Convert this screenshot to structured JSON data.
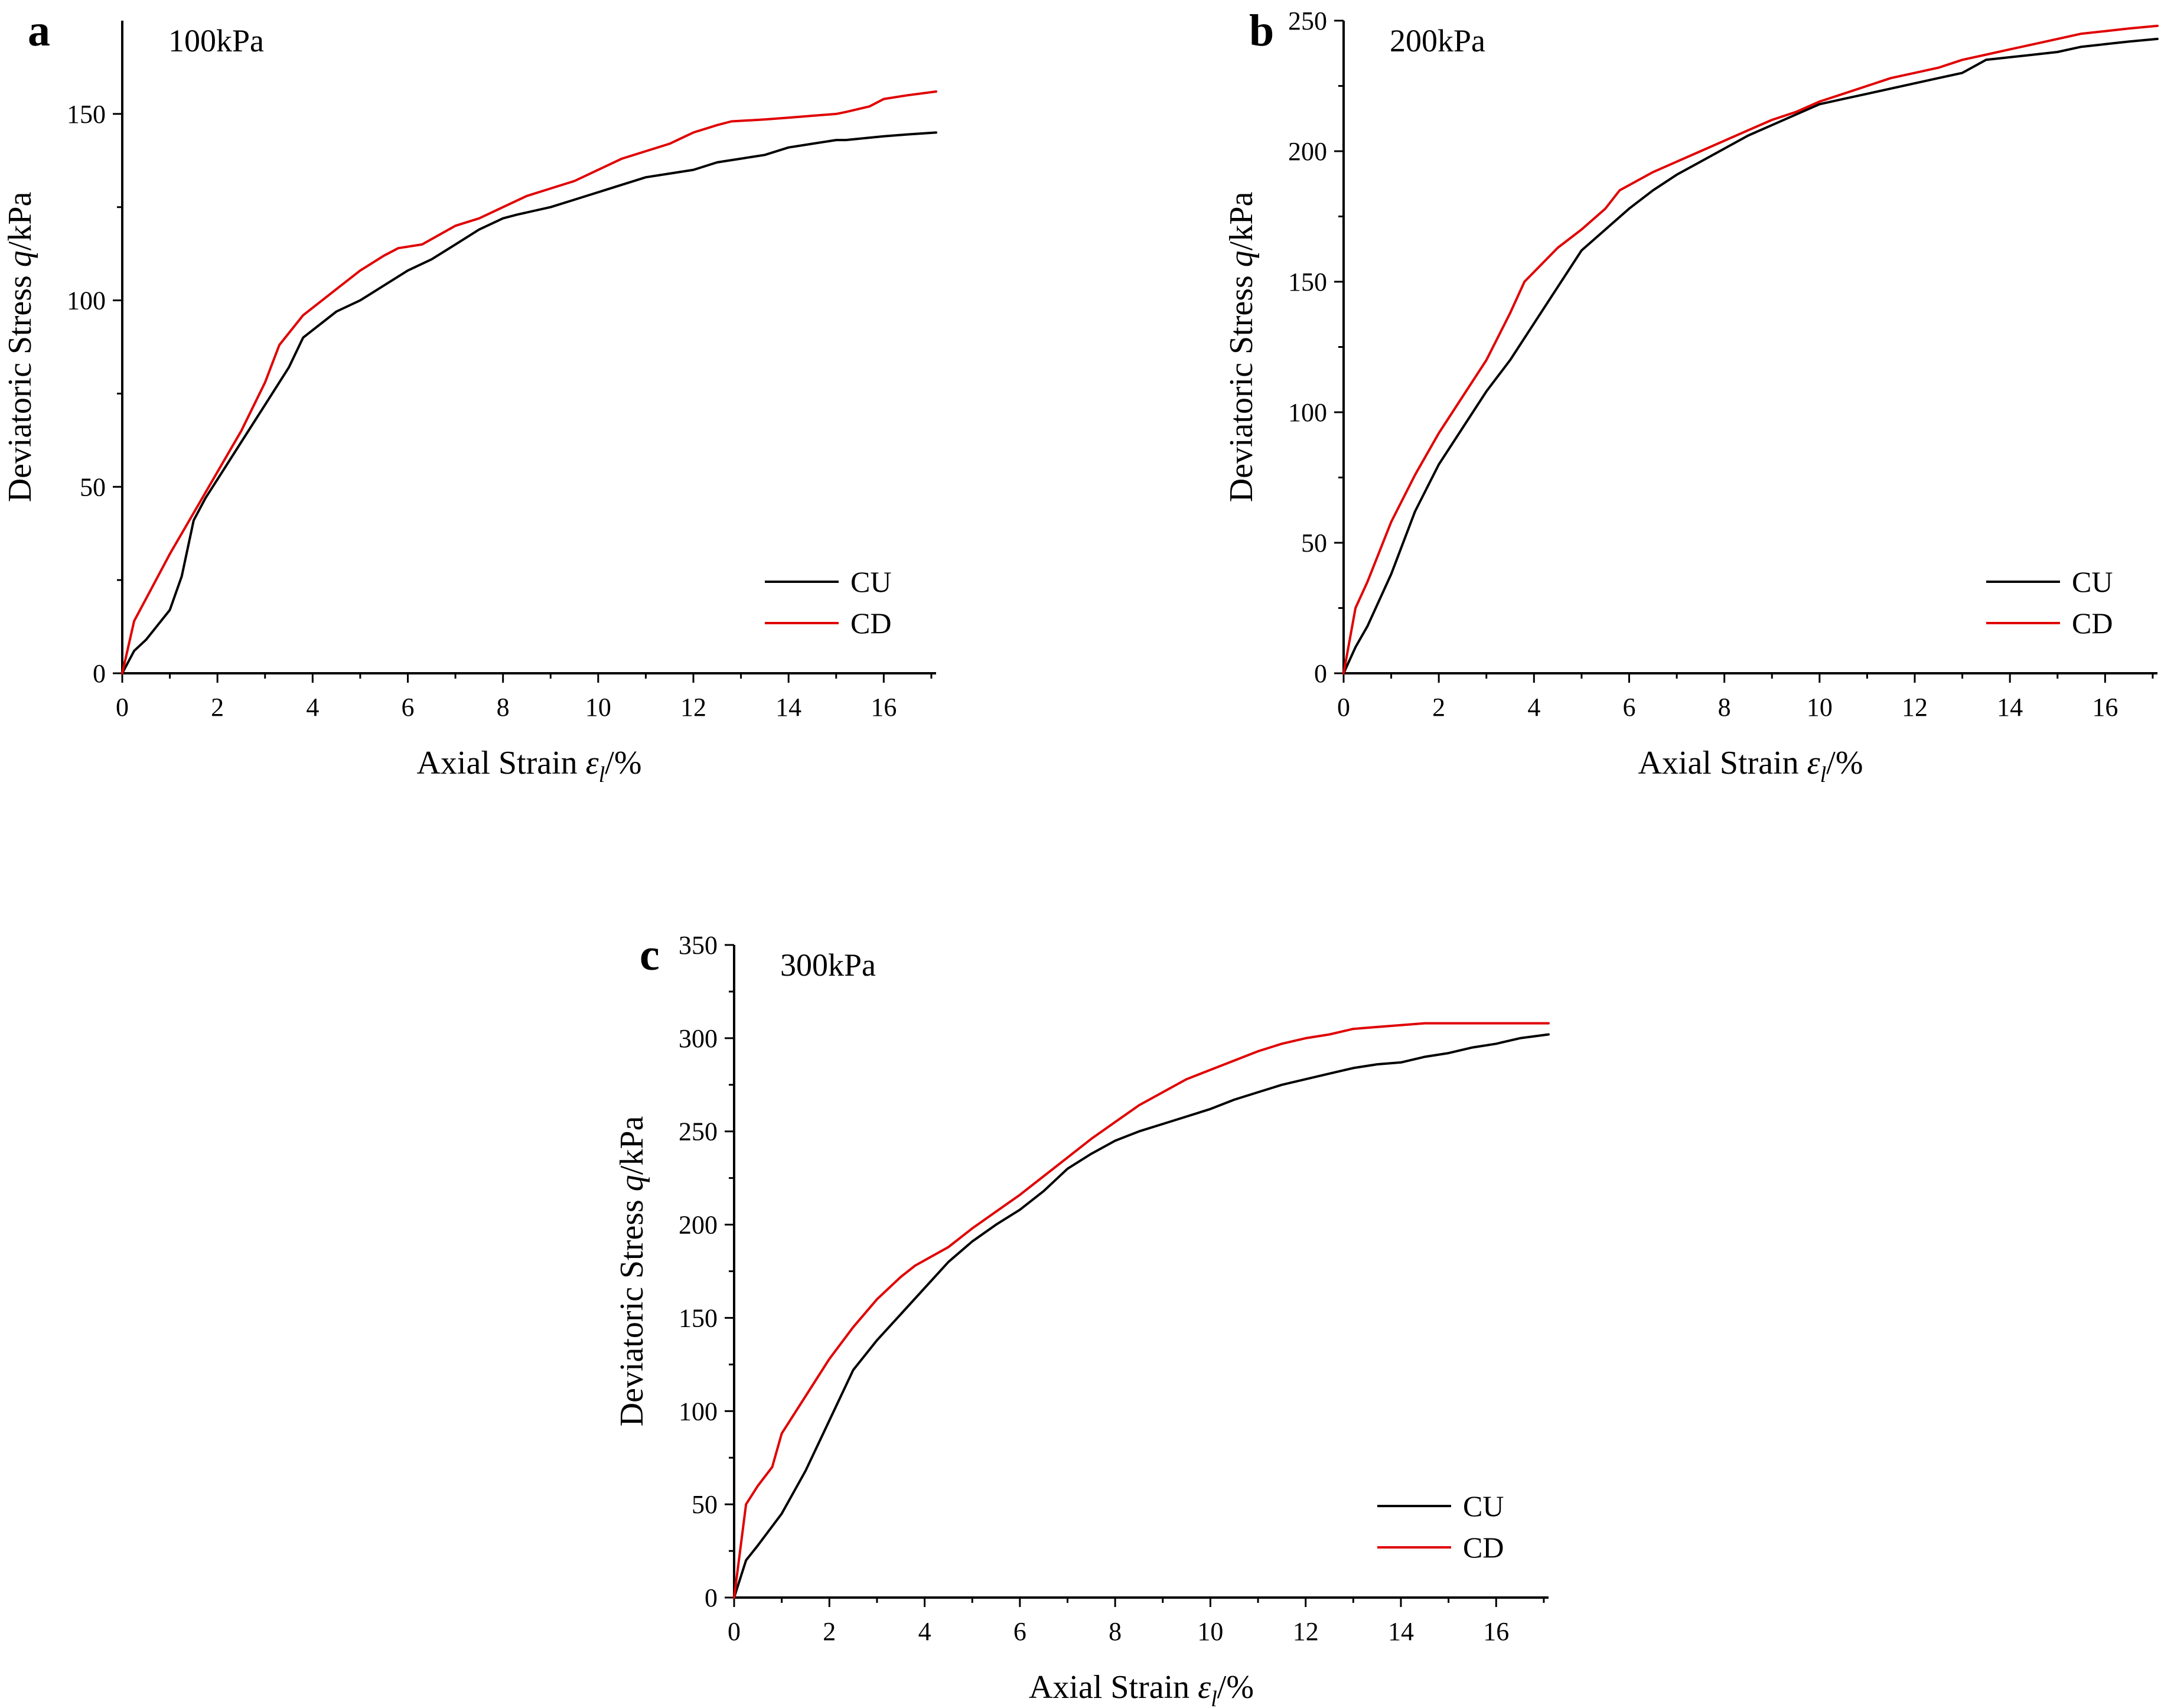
{
  "colors": {
    "CU": "#000000",
    "CD": "#e00000"
  },
  "chart_data": [
    {
      "type": "line",
      "panel_label": "a",
      "condition": "100kPa",
      "xlabel": "Axial Strain",
      "xlabel_symbol": "ε",
      "xlabel_subscript": "l",
      "xlabel_unit": "/%",
      "ylabel": "Deviatoric Stress",
      "ylabel_symbol": "q",
      "ylabel_unit": "/kPa",
      "xlim": [
        0,
        17.1
      ],
      "ylim": [
        0,
        175
      ],
      "xticks": [
        0,
        2,
        4,
        6,
        8,
        10,
        12,
        14,
        16
      ],
      "yticks": [
        0,
        50,
        100,
        150
      ],
      "legend": [
        "CU",
        "CD"
      ],
      "series": [
        {
          "name": "CU",
          "x": [
            0,
            0.25,
            0.5,
            1.0,
            1.25,
            1.5,
            1.75,
            2.0,
            2.5,
            3.0,
            3.5,
            3.8,
            4.5,
            5.0,
            5.5,
            6.0,
            6.5,
            7.0,
            7.5,
            8.0,
            8.3,
            9.0,
            9.5,
            10.0,
            10.5,
            11.0,
            11.5,
            12.0,
            12.5,
            13.0,
            13.5,
            14.0,
            14.5,
            15.0,
            15.2,
            16.0,
            16.5,
            17.1
          ],
          "y": [
            0,
            6,
            9,
            17,
            26,
            41,
            47,
            52,
            62,
            72,
            82,
            90,
            97,
            100,
            104,
            108,
            111,
            115,
            119,
            122,
            123,
            125,
            127,
            129,
            131,
            133,
            134,
            135,
            137,
            138,
            139,
            141,
            142,
            143,
            143,
            144,
            144.5,
            145
          ]
        },
        {
          "name": "CD",
          "x": [
            0,
            0.25,
            0.5,
            1.0,
            1.5,
            2.0,
            2.5,
            3.0,
            3.3,
            3.8,
            4.5,
            5.0,
            5.5,
            5.8,
            6.3,
            7.0,
            7.5,
            8.0,
            8.5,
            9.0,
            9.5,
            10.0,
            10.5,
            11.0,
            11.5,
            12.0,
            12.5,
            12.8,
            13.5,
            14.0,
            14.5,
            15.0,
            15.2,
            15.7,
            16.0,
            16.5,
            17.1
          ],
          "y": [
            0,
            14,
            20,
            32,
            43,
            54,
            65,
            78,
            88,
            96,
            103,
            108,
            112,
            114,
            115,
            120,
            122,
            125,
            128,
            130,
            132,
            135,
            138,
            140,
            142,
            145,
            147,
            148,
            148.5,
            149,
            149.5,
            150,
            150.5,
            152,
            154,
            155,
            156
          ]
        }
      ]
    },
    {
      "type": "line",
      "panel_label": "b",
      "condition": "200kPa",
      "xlabel": "Axial Strain",
      "xlabel_symbol": "ε",
      "xlabel_subscript": "l",
      "xlabel_unit": "/%",
      "ylabel": "Deviatoric Stress",
      "ylabel_symbol": "q",
      "ylabel_unit": "/kPa",
      "xlim": [
        0,
        17.1
      ],
      "ylim": [
        0,
        250
      ],
      "xticks": [
        0,
        2,
        4,
        6,
        8,
        10,
        12,
        14,
        16
      ],
      "yticks": [
        0,
        50,
        100,
        150,
        200,
        250
      ],
      "legend": [
        "CU",
        "CD"
      ],
      "series": [
        {
          "name": "CU",
          "x": [
            0,
            0.25,
            0.5,
            1.0,
            1.5,
            2.0,
            2.5,
            3.0,
            3.5,
            4.0,
            4.5,
            5.0,
            5.5,
            6.0,
            6.5,
            7.0,
            7.5,
            8.0,
            8.5,
            9.0,
            9.5,
            10.0,
            10.5,
            11.0,
            11.5,
            12.0,
            12.5,
            13.0,
            13.3,
            13.5,
            14.0,
            14.5,
            15.0,
            15.5,
            16.0,
            16.5,
            17.1
          ],
          "y": [
            0,
            10,
            18,
            38,
            62,
            80,
            94,
            108,
            120,
            134,
            148,
            162,
            170,
            178,
            185,
            191,
            196,
            201,
            206,
            210,
            214,
            218,
            220,
            222,
            224,
            226,
            228,
            230,
            233,
            235,
            236,
            237,
            238,
            240,
            241,
            242,
            243
          ]
        },
        {
          "name": "CD",
          "x": [
            0,
            0.25,
            0.5,
            1.0,
            1.5,
            2.0,
            2.5,
            3.0,
            3.5,
            3.8,
            4.5,
            5.0,
            5.5,
            5.8,
            6.5,
            7.0,
            7.5,
            8.0,
            8.5,
            9.0,
            9.5,
            10.0,
            10.5,
            11.0,
            11.5,
            12.0,
            12.5,
            13.0,
            13.5,
            14.0,
            14.5,
            15.0,
            15.5,
            16.0,
            16.5,
            17.1
          ],
          "y": [
            0,
            25,
            35,
            58,
            76,
            92,
            106,
            120,
            138,
            150,
            163,
            170,
            178,
            185,
            192,
            196,
            200,
            204,
            208,
            212,
            215,
            219,
            222,
            225,
            228,
            230,
            232,
            235,
            237,
            239,
            241,
            243,
            245,
            246,
            247,
            248
          ]
        }
      ]
    },
    {
      "type": "line",
      "panel_label": "c",
      "condition": "300kPa",
      "xlabel": "Axial Strain",
      "xlabel_symbol": "ε",
      "xlabel_subscript": "l",
      "xlabel_unit": "/%",
      "ylabel": "Deviatoric Stress",
      "ylabel_symbol": "q",
      "ylabel_unit": "/kPa",
      "xlim": [
        0,
        17.1
      ],
      "ylim": [
        0,
        350
      ],
      "xticks": [
        0,
        2,
        4,
        6,
        8,
        10,
        12,
        14,
        16
      ],
      "yticks": [
        0,
        50,
        100,
        150,
        200,
        250,
        300,
        350
      ],
      "legend": [
        "CU",
        "CD"
      ],
      "series": [
        {
          "name": "CU",
          "x": [
            0,
            0.25,
            0.5,
            1.0,
            1.5,
            2.0,
            2.5,
            3.0,
            3.5,
            4.0,
            4.5,
            5.0,
            5.5,
            6.0,
            6.5,
            7.0,
            7.5,
            8.0,
            8.5,
            9.0,
            9.5,
            10.0,
            10.5,
            11.0,
            11.5,
            12.0,
            12.5,
            13.0,
            13.5,
            14.0,
            14.5,
            15.0,
            15.5,
            16.0,
            16.5,
            17.1
          ],
          "y": [
            0,
            20,
            28,
            45,
            68,
            95,
            122,
            138,
            152,
            166,
            180,
            191,
            200,
            208,
            218,
            230,
            238,
            245,
            250,
            254,
            258,
            262,
            267,
            271,
            275,
            278,
            281,
            284,
            286,
            287,
            290,
            292,
            295,
            297,
            300,
            302
          ]
        },
        {
          "name": "CD",
          "x": [
            0,
            0.25,
            0.5,
            0.8,
            1.0,
            1.5,
            2.0,
            2.5,
            3.0,
            3.5,
            3.8,
            4.5,
            5.0,
            5.5,
            6.0,
            6.5,
            7.0,
            7.5,
            8.0,
            8.5,
            9.0,
            9.5,
            10.0,
            10.5,
            11.0,
            11.5,
            12.0,
            12.5,
            13.0,
            13.5,
            14.0,
            14.5,
            15.0,
            15.5,
            16.0,
            16.5,
            17.1
          ],
          "y": [
            0,
            50,
            60,
            70,
            88,
            108,
            128,
            145,
            160,
            172,
            178,
            188,
            198,
            207,
            216,
            226,
            236,
            246,
            255,
            264,
            271,
            278,
            283,
            288,
            293,
            297,
            300,
            302,
            305,
            306,
            307,
            308,
            308,
            308,
            308,
            308,
            308
          ]
        }
      ]
    }
  ]
}
